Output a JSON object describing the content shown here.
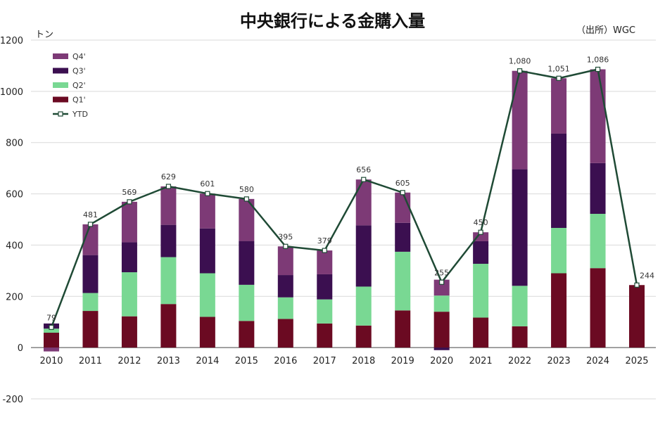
{
  "title": "中央銀行による金購入量",
  "source": "（出所）WGC",
  "chart_data": {
    "type": "bar",
    "stacked": true,
    "title": "中央銀行による金購入量",
    "ylabel": "トン",
    "ylim": [
      -200,
      1200
    ],
    "yticks": [
      -200,
      0,
      200,
      400,
      600,
      800,
      1000,
      1200
    ],
    "grid": true,
    "legend_position": "top-left",
    "categories": [
      "2010",
      "2011",
      "2012",
      "2013",
      "2014",
      "2015",
      "2016",
      "2017",
      "2018",
      "2019",
      "2020",
      "2021",
      "2022",
      "2023",
      "2024",
      "2025"
    ],
    "series": [
      {
        "name": "Q1'",
        "color": "#6b0a22",
        "values": [
          58,
          143,
          122,
          170,
          120,
          104,
          112,
          94,
          86,
          145,
          140,
          117,
          83,
          290,
          310,
          244
        ]
      },
      {
        "name": "Q2'",
        "color": "#79d893",
        "values": [
          16,
          70,
          172,
          183,
          170,
          141,
          84,
          94,
          152,
          229,
          63,
          210,
          158,
          177,
          212,
          0
        ]
      },
      {
        "name": "Q3'",
        "color": "#3b0f50",
        "values": [
          20,
          148,
          117,
          126,
          175,
          171,
          87,
          98,
          239,
          113,
          -10,
          88,
          455,
          368,
          198,
          0
        ]
      },
      {
        "name": "Q4'",
        "color": "#7d3a76",
        "values": [
          -15,
          120,
          158,
          150,
          136,
          164,
          112,
          93,
          179,
          118,
          62,
          35,
          384,
          216,
          366,
          0
        ]
      }
    ],
    "ytd": {
      "name": "YTD",
      "color": "#1f4a35",
      "values": [
        79,
        481,
        569,
        629,
        601,
        580,
        395,
        379,
        656,
        605,
        255,
        450,
        1080,
        1051,
        1086,
        244
      ]
    },
    "data_labels": [
      "79",
      "481",
      "569",
      "629",
      "601",
      "580",
      "395",
      "379",
      "656",
      "605",
      "255",
      "450",
      "1,080",
      "1,051",
      "1,086",
      "244"
    ]
  }
}
